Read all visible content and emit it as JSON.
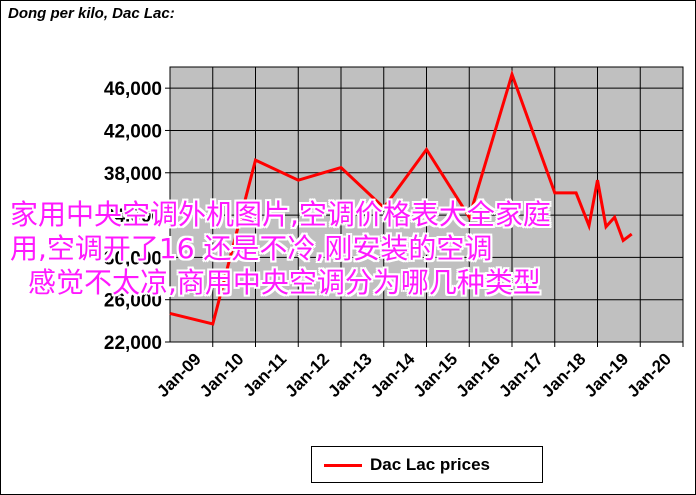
{
  "chart_data": {
    "type": "line",
    "title": "Dong per kilo, Dac Lac:",
    "categories": [
      "Jan-09",
      "Jan-10",
      "Jan-11",
      "Jan-12",
      "Jan-13",
      "Jan-14",
      "Jan-15",
      "Jan-16",
      "Jan-17",
      "Jan-18",
      "Jan-19",
      "Jan-20"
    ],
    "yticks": [
      "46,000",
      "42,000",
      "38,000",
      "34,000",
      "30,000",
      "26,000",
      "22,000"
    ],
    "ylim": [
      22000,
      48000
    ],
    "grid": true,
    "legend_position": "bottom",
    "series": [
      {
        "name": "Dac Lac prices",
        "color": "#ff0000",
        "points": [
          [
            "Jan-09",
            24700
          ],
          [
            "Jan-10",
            23700
          ],
          [
            "Jan-11",
            39200
          ],
          [
            "Jan-12",
            37300
          ],
          [
            "Jan-13",
            38500
          ],
          [
            "Jan-14",
            34700
          ],
          [
            "Jan-15",
            40200
          ],
          [
            "Jan-16",
            33800
          ],
          [
            "Jan-17",
            47300
          ],
          [
            "Jan-18",
            36100
          ],
          [
            "Jan-18.5",
            36100
          ],
          [
            "Jan-18.8",
            33000
          ],
          [
            "Jan-19",
            37300
          ],
          [
            "Jan-19.2",
            32900
          ],
          [
            "Jan-19.4",
            33800
          ],
          [
            "Jan-19.6",
            31600
          ],
          [
            "Jan-19.8",
            32200
          ]
        ]
      }
    ]
  },
  "overlay": {
    "lines": [
      "家用中央空调外机图片,空调价格表大全家庭",
      "用,空调开了16 还是不冷,刚安装的空调",
      "感觉不太凉,商用中央空调分为哪几种类型"
    ],
    "color": "#ff19ff"
  }
}
